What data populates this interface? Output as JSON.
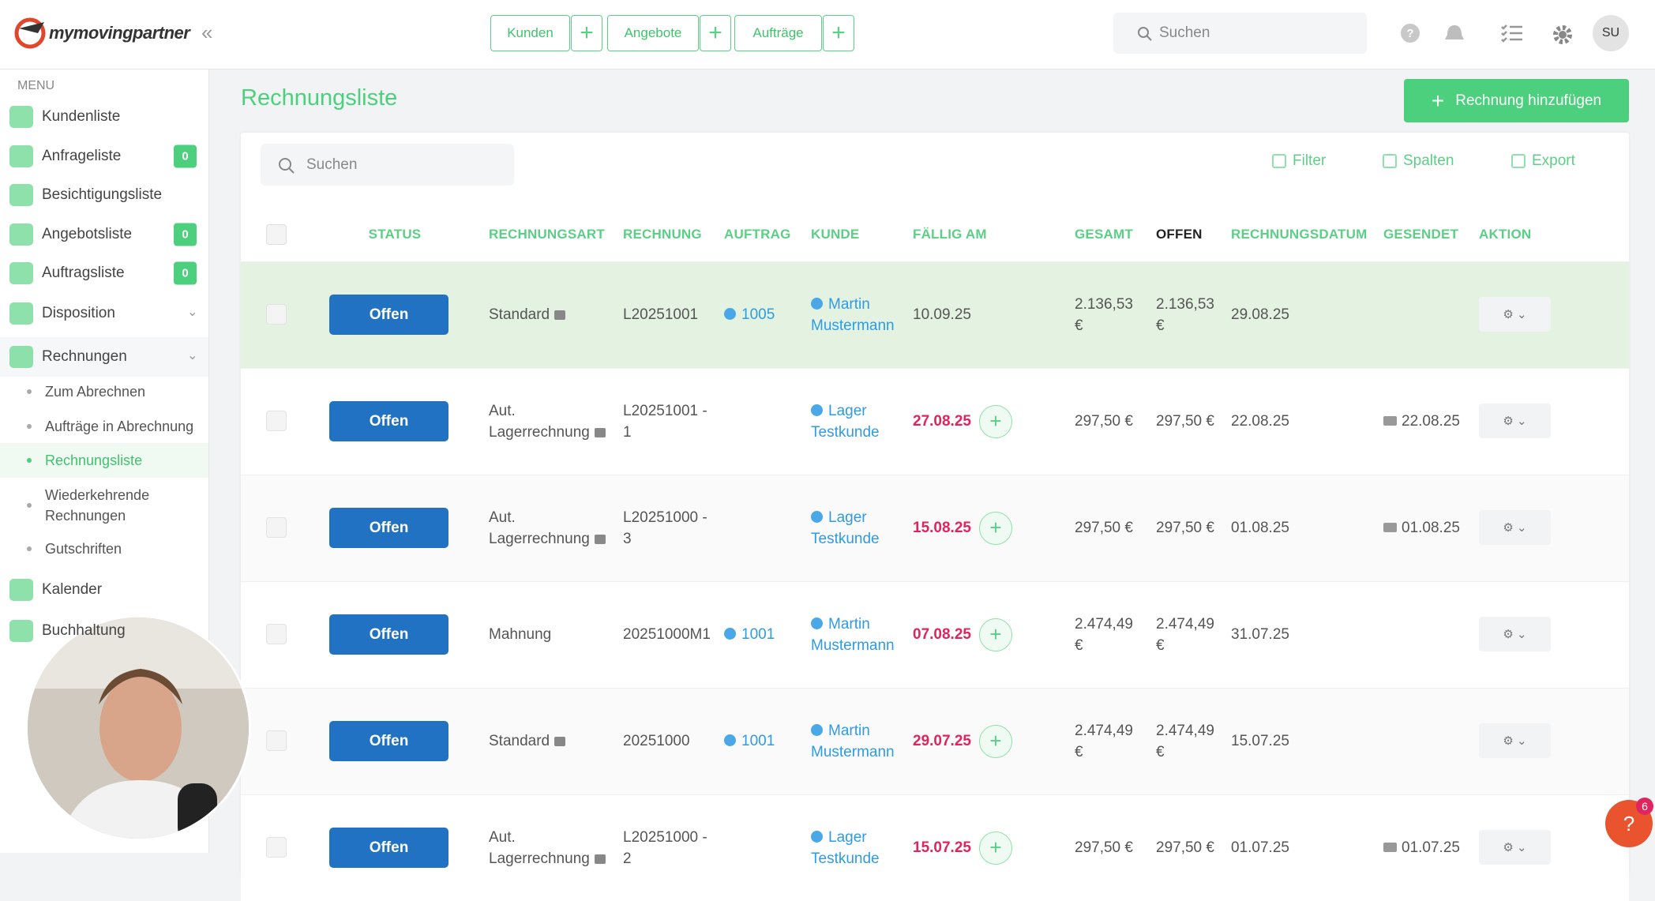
{
  "header": {
    "logo": "mymovingpartner",
    "nav": [
      "Kunden",
      "Angebote",
      "Aufträge"
    ],
    "search": "Suchen",
    "avatar": "SU"
  },
  "sidebar": {
    "menu_title": "MENU",
    "items": [
      {
        "label": "Kundenliste"
      },
      {
        "label": "Anfrageliste",
        "badge": "0"
      },
      {
        "label": "Besichtigungsliste"
      },
      {
        "label": "Angebotsliste",
        "badge": "0"
      },
      {
        "label": "Auftragsliste",
        "badge": "0"
      },
      {
        "label": "Disposition"
      },
      {
        "label": "Rechnungen"
      }
    ],
    "sub_items": [
      "Zum Abrechnen",
      "Aufträge in Abrechnung",
      "Rechnungsliste",
      "Wiederkehrende Rechnungen",
      "Gutschriften"
    ],
    "more_items": [
      "Kalender",
      "Buchhaltung"
    ]
  },
  "page": {
    "title": "Rechnungsliste",
    "add_button": "Rechnung hinzufügen",
    "search": "Suchen",
    "tools": [
      "Filter",
      "Spalten",
      "Export"
    ]
  },
  "table": {
    "columns": [
      "STATUS",
      "RECHNUNGSART",
      "RECHNUNG",
      "AUFTRAG",
      "KUNDE",
      "FÄLLIG AM",
      "GESAMT",
      "OFFEN",
      "RECHNUNGSDATUM",
      "GESENDET",
      "AKTION"
    ],
    "rows": [
      {
        "status": "Offen",
        "art": "Standard",
        "locked": true,
        "rechnung": "L20251001",
        "auftrag": "1005",
        "kunde": "Martin Mustermann",
        "faellig": "10.09.25",
        "overdue": false,
        "gesamt": "2.136,53 €",
        "offen": "2.136,53 €",
        "datum": "29.08.25"
      },
      {
        "status": "Offen",
        "art": "Aut. Lagerrechnung",
        "locked": true,
        "rechnung": "L20251001 - 1",
        "kunde": "Lager Testkunde",
        "faellig": "27.08.25",
        "overdue": true,
        "gesamt": "297,50 €",
        "offen": "297,50 €",
        "datum": "22.08.25",
        "gesendet": "22.08.25"
      },
      {
        "status": "Offen",
        "art": "Aut. Lagerrechnung",
        "locked": true,
        "rechnung": "L20251000 - 3",
        "kunde": "Lager Testkunde",
        "faellig": "15.08.25",
        "overdue": true,
        "gesamt": "297,50 €",
        "offen": "297,50 €",
        "datum": "01.08.25",
        "gesendet": "01.08.25"
      },
      {
        "status": "Offen",
        "art": "Mahnung",
        "locked": false,
        "rechnung": "20251000M1",
        "auftrag": "1001",
        "kunde": "Martin Mustermann",
        "faellig": "07.08.25",
        "overdue": true,
        "gesamt": "2.474,49 €",
        "offen": "2.474,49 €",
        "datum": "31.07.25"
      },
      {
        "status": "Offen",
        "art": "Standard",
        "locked": true,
        "rechnung": "20251000",
        "auftrag": "1001",
        "kunde": "Martin Mustermann",
        "faellig": "29.07.25",
        "overdue": true,
        "gesamt": "2.474,49 €",
        "offen": "2.474,49 €",
        "datum": "15.07.25"
      },
      {
        "status": "Offen",
        "art": "Aut. Lagerrechnung",
        "locked": true,
        "rechnung": "L20251000 - 2",
        "kunde": "Lager Testkunde",
        "faellig": "15.07.25",
        "overdue": true,
        "gesamt": "297,50 €",
        "offen": "297,50 €",
        "datum": "01.07.25",
        "gesendet": "01.07.25"
      }
    ]
  },
  "help_badge": "6"
}
